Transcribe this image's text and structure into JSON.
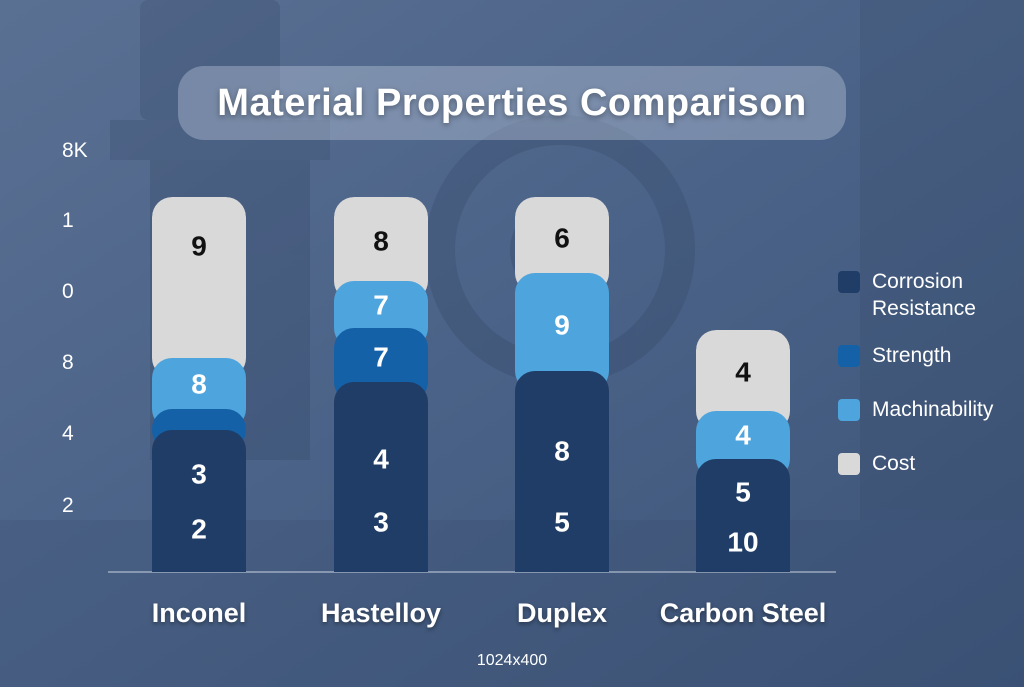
{
  "chart_data": {
    "type": "bar",
    "stacked": true,
    "title": "Material Properties Comparison",
    "categories": [
      "Inconel",
      "Hastelloy",
      "Duplex",
      "Carbon Steel"
    ],
    "y_tick_labels": [
      "8K",
      "1",
      "0",
      "8",
      "4",
      "2"
    ],
    "series": [
      {
        "name": "Corrosion Resistance",
        "color": "#1f3d66"
      },
      {
        "name": "Strength",
        "color": "#1561a8"
      },
      {
        "name": "Machinability",
        "color": "#4ea4dc"
      },
      {
        "name": "Cost",
        "color": "#d9d9d9"
      }
    ],
    "segment_labels": [
      [
        [
          "2",
          "3"
        ],
        [],
        [
          "8"
        ],
        [
          "9"
        ]
      ],
      [
        [
          "3",
          "4"
        ],
        [
          "7"
        ],
        [
          "7"
        ],
        [
          "8"
        ]
      ],
      [
        [
          "5",
          "8"
        ],
        [],
        [
          "9"
        ],
        [
          "6"
        ]
      ],
      [
        [
          "10",
          "5"
        ],
        [],
        [
          "4"
        ],
        [
          "4"
        ]
      ]
    ],
    "legend_position": "right",
    "grid": false
  },
  "footnote": "1024x400",
  "colors": {
    "background": "#4a6287",
    "axis": "#c9d3e0",
    "label_dark": "#111111",
    "label_light": "#ffffff"
  }
}
